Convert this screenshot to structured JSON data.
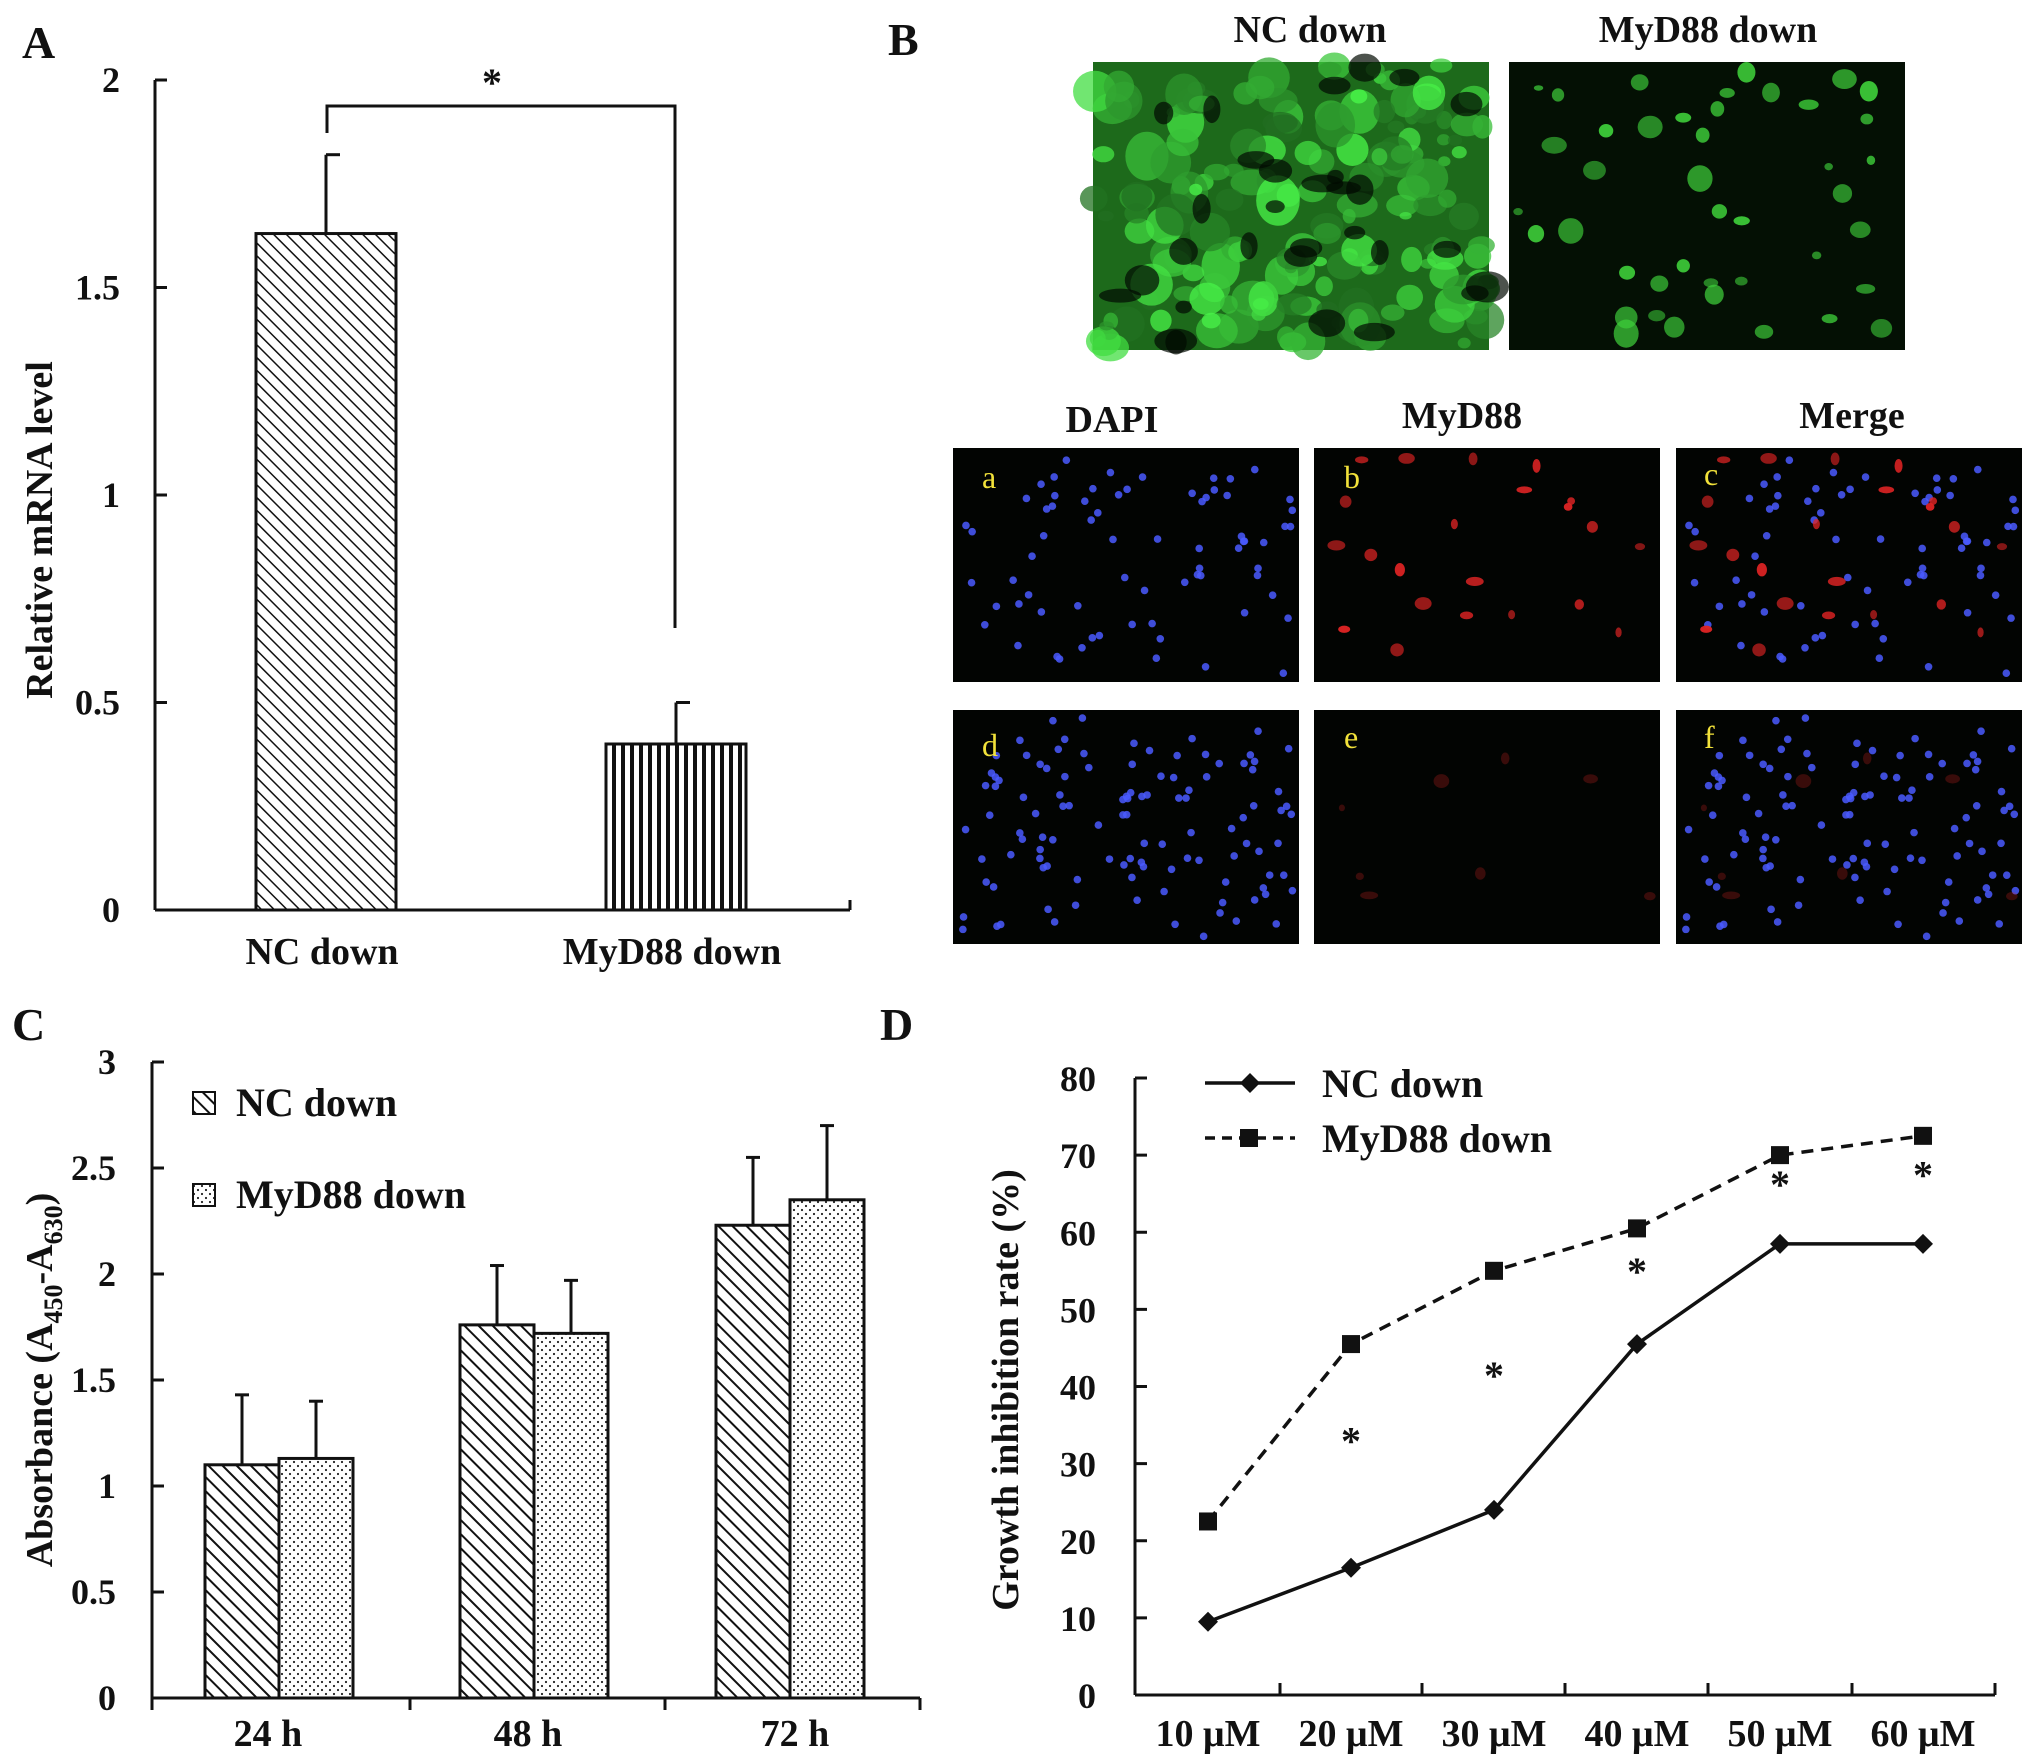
{
  "panels": {
    "A": {
      "letter": "A"
    },
    "B": {
      "letter": "B"
    },
    "C": {
      "letter": "C"
    },
    "D": {
      "letter": "D"
    }
  },
  "microscopy": {
    "top_labels": [
      "NC down",
      "MyD88 down"
    ],
    "column_labels": [
      "DAPI",
      "MyD88",
      "Merge"
    ],
    "sub_labels": [
      "a",
      "b",
      "c",
      "d",
      "e",
      "f"
    ],
    "colors": {
      "gfp": "#3ecf3a",
      "dapi": "#4a5bff",
      "myd88": "#e02424",
      "background": "#020402"
    }
  },
  "chart_data": [
    {
      "id": "A",
      "type": "bar",
      "ylabel": "Relative mRNA level",
      "xlabel": "",
      "categories": [
        "NC down",
        "MyD88 down"
      ],
      "values": [
        1.63,
        0.4
      ],
      "errors": [
        0.19,
        0.1
      ],
      "ylim": [
        0,
        2
      ],
      "yticks": [
        "0",
        "0.5",
        "1",
        "1.5",
        "2"
      ],
      "significance": "*",
      "patterns": [
        "diagonal-hatch",
        "vertical-lines"
      ]
    },
    {
      "id": "C",
      "type": "bar",
      "ylabel_main": "Absorbance (A",
      "ylabel_sub1": "450",
      "ylabel_mid": "-A",
      "ylabel_sub2": "630",
      "ylabel_end": ")",
      "categories": [
        "24 h",
        "48 h",
        "72 h"
      ],
      "series": [
        {
          "name": "NC down",
          "values": [
            1.1,
            1.76,
            2.23
          ],
          "errors": [
            0.33,
            0.28,
            0.32
          ],
          "pattern": "diagonal-hatch"
        },
        {
          "name": "MyD88 down",
          "values": [
            1.13,
            1.72,
            2.35
          ],
          "errors": [
            0.27,
            0.25,
            0.35
          ],
          "pattern": "dots"
        }
      ],
      "ylim": [
        0,
        3
      ],
      "yticks": [
        "0",
        "0.5",
        "1",
        "1.5",
        "2",
        "2.5",
        "3"
      ],
      "legend": "top-left"
    },
    {
      "id": "D",
      "type": "line",
      "ylabel": "Growth inhibition rate (%)",
      "categories": [
        "10 μM",
        "20 μM",
        "30 μM",
        "40 μM",
        "50 μM",
        "60 μM"
      ],
      "series": [
        {
          "name": "NC down",
          "values": [
            9.5,
            16.5,
            24,
            45.5,
            58.5,
            58.5
          ],
          "style": "solid",
          "marker": "diamond"
        },
        {
          "name": "MyD88 down",
          "values": [
            22.5,
            45.5,
            55,
            60.5,
            70,
            72.5
          ],
          "style": "dashed",
          "marker": "square"
        }
      ],
      "ylim": [
        0,
        80
      ],
      "yticks": [
        "0",
        "10",
        "20",
        "30",
        "40",
        "50",
        "60",
        "70",
        "80"
      ],
      "significance_markers": [
        "*",
        "*",
        "*",
        "*",
        "*"
      ],
      "legend": "top-left"
    }
  ]
}
